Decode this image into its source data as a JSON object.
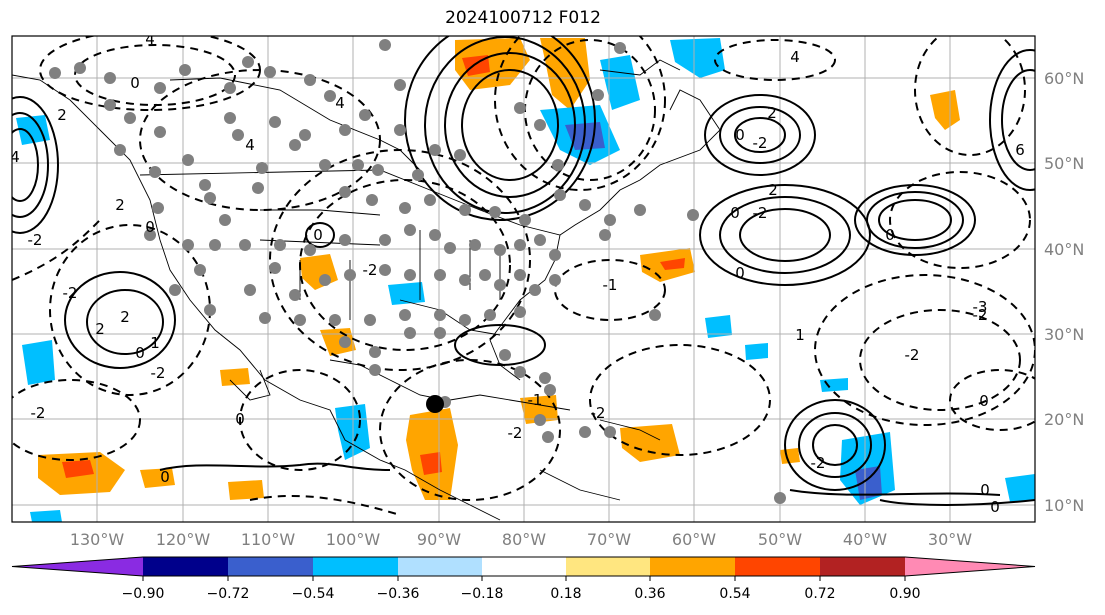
{
  "title": "2024100712 F012",
  "longitude_labels": [
    "130°W",
    "120°W",
    "110°W",
    "100°W",
    "90°W",
    "80°W",
    "70°W",
    "60°W",
    "50°W",
    "40°W",
    "30°W"
  ],
  "latitude_labels": [
    "60°N",
    "50°N",
    "40°N",
    "30°N",
    "20°N",
    "10°N"
  ],
  "colorbar": {
    "tick_labels": [
      "−0.90",
      "−0.72",
      "−0.54",
      "−0.36",
      "−0.18",
      "0.18",
      "0.36",
      "0.54",
      "0.72",
      "0.90"
    ],
    "colors": [
      "#8a2be2",
      "#00008b",
      "#3a5fcd",
      "#00bfff",
      "#b0e0ff",
      "#ffffff",
      "#ffe680",
      "#ffa500",
      "#ff4500",
      "#b22222",
      "#ff8ab4"
    ]
  },
  "contour_labels": [
    "4",
    "0",
    "2",
    "4",
    "2",
    "0",
    "-2",
    "-2",
    "0",
    "2",
    "2",
    "4",
    "-2",
    "4",
    "0",
    "2",
    "6",
    "4",
    "-2",
    "0",
    "-2",
    "0",
    "-1",
    "-2",
    "-2",
    "1",
    "2",
    "0",
    "-1",
    "-2",
    "0",
    "1",
    "-2",
    "-3",
    "-2",
    "0",
    "0",
    "0",
    "-2",
    "0",
    "-2",
    "0"
  ],
  "marker_colors": {
    "grey_dots": "#808080",
    "black_dot": "#000000"
  }
}
